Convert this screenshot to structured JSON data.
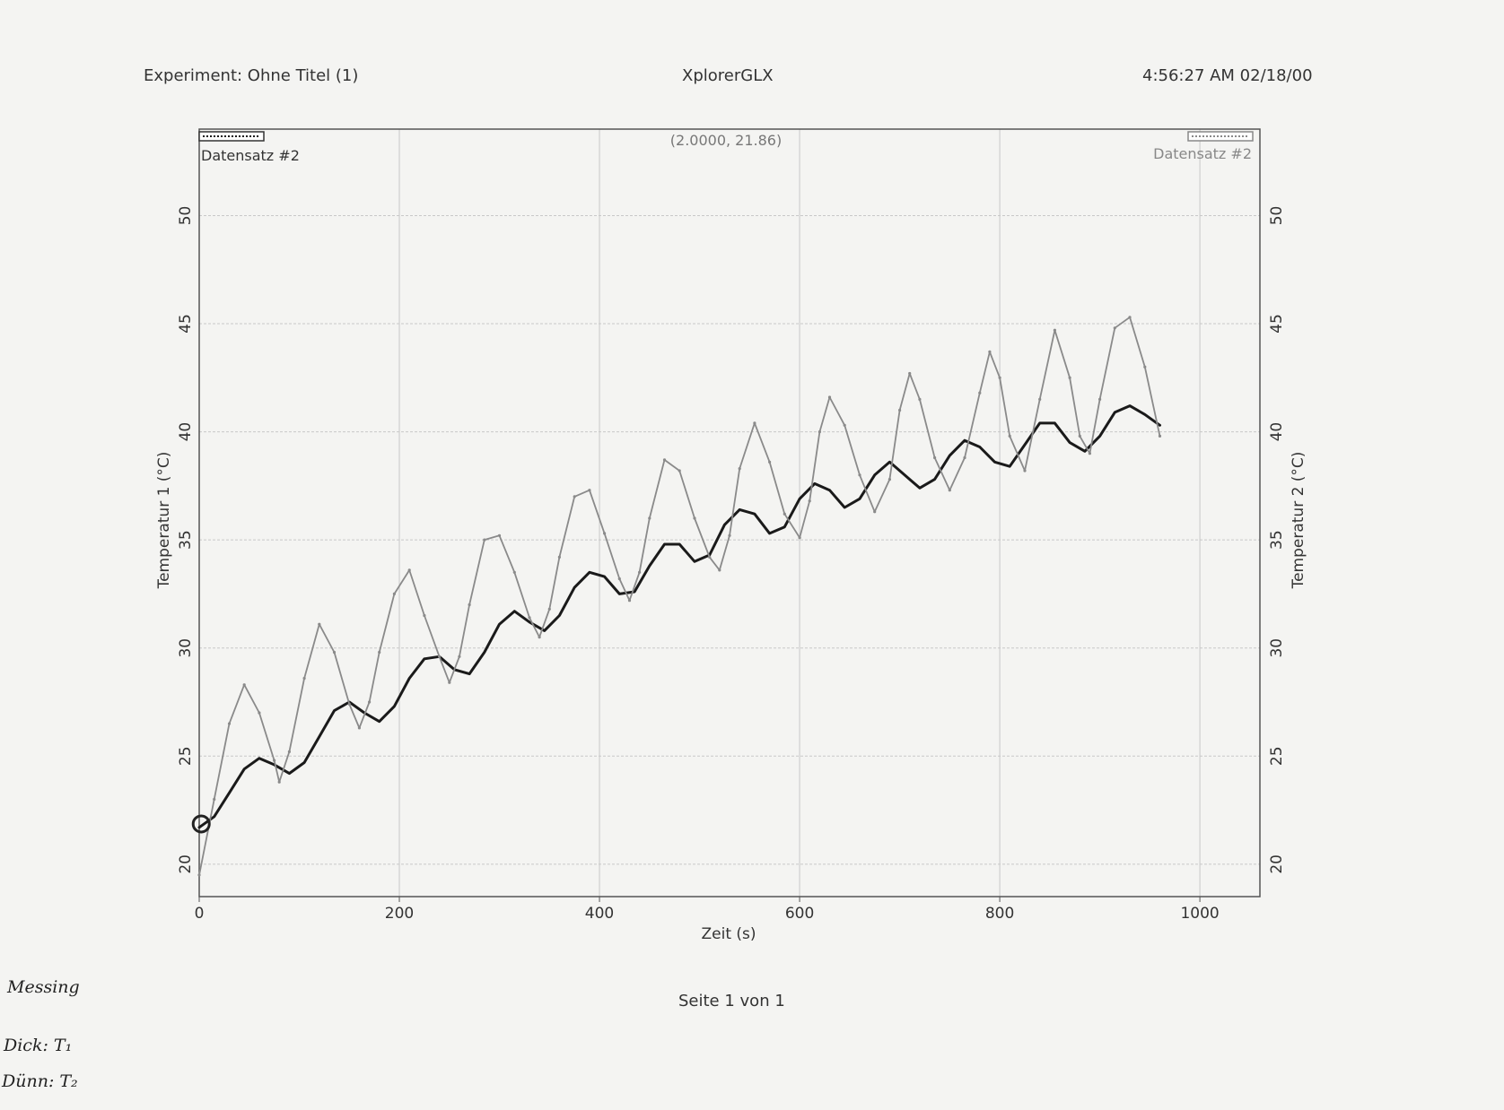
{
  "header": {
    "experiment": "Experiment: Ohne Titel (1)",
    "app": "XplorerGLX",
    "timestamp": "4:56:27 AM  02/18/00"
  },
  "footer": {
    "page": "Seite 1 von 1"
  },
  "handwriting": {
    "line1": "Messing",
    "line2": "Dick:  T₁",
    "line3": "Dünn:  T₂"
  },
  "chart_data": {
    "type": "line",
    "xlabel": "Zeit (s)",
    "ylabel_left": "Temperatur 1  (°C)",
    "ylabel_right": "Temperatur 2  (°C)",
    "xlim": [
      0,
      1060
    ],
    "ylim": [
      18.5,
      54
    ],
    "xticks": [
      0,
      200,
      400,
      600,
      800,
      1000
    ],
    "yticks": [
      20,
      25,
      30,
      35,
      40,
      45,
      50
    ],
    "grid": true,
    "cursor_readout": "(2.0000, 21.86)",
    "cursor_point": {
      "x": 2,
      "y": 21.86
    },
    "legend_left": "Datensatz #2",
    "legend_right": "Datensatz #2",
    "colors": {
      "t1": "#1a1a1a",
      "t2": "#8a8a8a",
      "grid": "#c8c8c8",
      "axis": "#555555"
    },
    "series": [
      {
        "axis": "left",
        "x": [
          0,
          15,
          30,
          45,
          60,
          75,
          90,
          105,
          120,
          135,
          150,
          165,
          180,
          195,
          210,
          225,
          240,
          255,
          270,
          285,
          300,
          315,
          330,
          345,
          360,
          375,
          390,
          405,
          420,
          435,
          450,
          465,
          480,
          495,
          510,
          525,
          540,
          555,
          570,
          585,
          600,
          615,
          630,
          645,
          660,
          675,
          690,
          705,
          720,
          735,
          750,
          765,
          780,
          795,
          810,
          825,
          840,
          855,
          870,
          885,
          900,
          915,
          930,
          945,
          960
        ],
        "values": [
          21.7,
          22.2,
          23.3,
          24.4,
          24.9,
          24.6,
          24.2,
          24.7,
          25.9,
          27.1,
          27.5,
          27.0,
          26.6,
          27.3,
          28.6,
          29.5,
          29.6,
          29.0,
          28.8,
          29.8,
          31.1,
          31.7,
          31.2,
          30.8,
          31.5,
          32.8,
          33.5,
          33.3,
          32.5,
          32.6,
          33.8,
          34.8,
          34.8,
          34.0,
          34.3,
          35.7,
          36.4,
          36.2,
          35.3,
          35.6,
          36.9,
          37.6,
          37.3,
          36.5,
          36.9,
          38.0,
          38.6,
          38.0,
          37.4,
          37.8,
          38.9,
          39.6,
          39.3,
          38.6,
          38.4,
          39.4,
          40.4,
          40.4,
          39.5,
          39.1,
          39.8,
          40.9,
          41.2,
          40.8,
          40.3
        ]
      },
      {
        "axis": "right",
        "x": [
          0,
          15,
          30,
          45,
          60,
          75,
          80,
          90,
          105,
          120,
          135,
          150,
          160,
          170,
          180,
          195,
          210,
          225,
          240,
          250,
          260,
          270,
          285,
          300,
          315,
          330,
          340,
          350,
          360,
          375,
          390,
          405,
          420,
          430,
          440,
          450,
          465,
          480,
          495,
          510,
          520,
          530,
          540,
          555,
          570,
          585,
          600,
          610,
          620,
          630,
          645,
          660,
          675,
          690,
          700,
          710,
          720,
          735,
          750,
          765,
          780,
          790,
          800,
          810,
          825,
          840,
          855,
          870,
          880,
          890,
          900,
          915,
          930,
          945,
          960
        ],
        "values": [
          19.5,
          23.0,
          26.5,
          28.3,
          27.0,
          24.8,
          23.8,
          25.2,
          28.6,
          31.1,
          29.8,
          27.4,
          26.3,
          27.5,
          29.8,
          32.5,
          33.6,
          31.5,
          29.6,
          28.4,
          29.6,
          32.0,
          35.0,
          35.2,
          33.5,
          31.4,
          30.5,
          31.8,
          34.2,
          37.0,
          37.3,
          35.3,
          33.2,
          32.2,
          33.5,
          36.0,
          38.7,
          38.2,
          36.0,
          34.2,
          33.6,
          35.2,
          38.3,
          40.4,
          38.6,
          36.2,
          35.1,
          36.8,
          40.0,
          41.6,
          40.3,
          38.0,
          36.3,
          37.8,
          41.0,
          42.7,
          41.5,
          38.8,
          37.3,
          38.8,
          41.8,
          43.7,
          42.5,
          39.8,
          38.2,
          41.5,
          44.7,
          42.5,
          39.8,
          39.0,
          41.5,
          44.8,
          45.3,
          43.0,
          39.8
        ]
      }
    ]
  }
}
